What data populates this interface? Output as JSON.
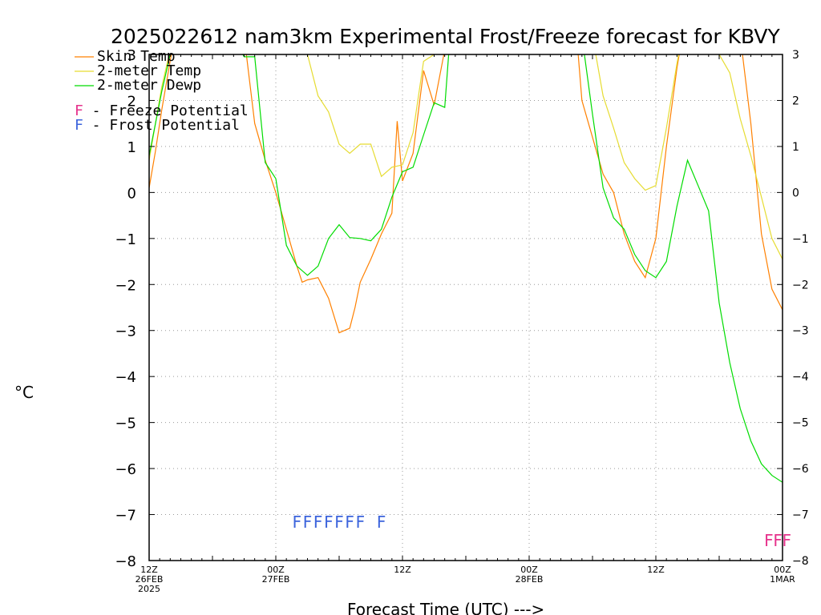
{
  "chart_data": {
    "type": "line",
    "title": "2025022612 nam3km Experimental Frost/Freeze forecast for KBVY",
    "xlabel": "Forecast Time (UTC) --->",
    "ylabel": "°C",
    "ylim": [
      -8,
      3
    ],
    "xlim": [
      0,
      60
    ],
    "yticks": [
      -8,
      -7,
      -6,
      -5,
      -4,
      -3,
      -2,
      -1,
      0,
      1,
      2,
      3
    ],
    "x_ticks": [
      {
        "x": 0,
        "l1": "12Z",
        "l2": "26FEB",
        "l3": "2025"
      },
      {
        "x": 12,
        "l1": "00Z",
        "l2": "27FEB",
        "l3": ""
      },
      {
        "x": 24,
        "l1": "12Z",
        "l2": "",
        "l3": ""
      },
      {
        "x": 36,
        "l1": "00Z",
        "l2": "28FEB",
        "l3": ""
      },
      {
        "x": 48,
        "l1": "12Z",
        "l2": "",
        "l3": ""
      },
      {
        "x": 60,
        "l1": "00Z",
        "l2": "1MAR",
        "l3": ""
      }
    ],
    "grid": true,
    "legend": [
      {
        "name": "Skin Temp",
        "color": "#ff8000"
      },
      {
        "name": "2-meter Temp",
        "color": "#e6dc32"
      },
      {
        "name": "2-meter Dewp",
        "color": "#00dc00"
      }
    ],
    "potential_legend": [
      {
        "letter": "F",
        "text": " - Freeze Potential",
        "color": "#e6328c"
      },
      {
        "letter": "F",
        "text": " - Frost Potential",
        "color": "#3c64dc"
      }
    ],
    "series": [
      {
        "name": "Skin Temp",
        "color": "#ff8000",
        "x": [
          0,
          0.6,
          1.2,
          1.8,
          2.4,
          9,
          10,
          11,
          12,
          13,
          14,
          14.5,
          15,
          16,
          17,
          18,
          18.5,
          19,
          19.5,
          20,
          21,
          22,
          23,
          23.5,
          24,
          25,
          26,
          27,
          28,
          29,
          29.5,
          40.5,
          41,
          42,
          43,
          44,
          45,
          46,
          47,
          48,
          49,
          50,
          50.5,
          56,
          57,
          58,
          59,
          60
        ],
        "y": [
          0.1,
          0.9,
          1.8,
          2.6,
          3.4,
          3.4,
          1.5,
          0.7,
          0.0,
          -0.8,
          -1.6,
          -1.95,
          -1.9,
          -1.85,
          -2.3,
          -3.05,
          -3.0,
          -2.95,
          -2.5,
          -1.95,
          -1.45,
          -0.9,
          -0.45,
          1.55,
          0.25,
          0.85,
          2.65,
          1.9,
          3.1,
          3.3,
          3.4,
          3.4,
          2.0,
          1.2,
          0.4,
          0.0,
          -0.9,
          -1.5,
          -1.85,
          -1.0,
          1.0,
          2.7,
          3.4,
          3.4,
          1.5,
          -0.9,
          -2.1,
          -2.55
        ]
      },
      {
        "name": "2-meter Temp",
        "color": "#e6dc32",
        "x": [
          0,
          0.6,
          1.2,
          1.8,
          2.4,
          14.5,
          15,
          16,
          17,
          18,
          18.5,
          19,
          20,
          21,
          22,
          23,
          24,
          25,
          26,
          27,
          28,
          28.5,
          42,
          43,
          44,
          45,
          46,
          47,
          48,
          49,
          50,
          50.5,
          53.5,
          54,
          55,
          56,
          57,
          58,
          59,
          60
        ],
        "y": [
          0.7,
          1.5,
          2.3,
          2.9,
          3.4,
          3.4,
          3.0,
          2.1,
          1.75,
          1.05,
          0.95,
          0.85,
          1.05,
          1.05,
          0.35,
          0.55,
          0.6,
          1.3,
          2.85,
          3.0,
          3.2,
          3.4,
          3.4,
          2.1,
          1.4,
          0.65,
          0.3,
          0.05,
          0.15,
          1.4,
          2.8,
          3.4,
          3.4,
          3.0,
          2.6,
          1.6,
          0.8,
          -0.1,
          -1.0,
          -1.45
        ]
      },
      {
        "name": "2-meter Dewp",
        "color": "#00dc00",
        "x": [
          0,
          0.6,
          1.2,
          1.8,
          2.4,
          8,
          9,
          10,
          11,
          12,
          13,
          14,
          15,
          16,
          17,
          18,
          19,
          20,
          21,
          22,
          23,
          24,
          25,
          26,
          27,
          28,
          28.5,
          41,
          42,
          43,
          44,
          45,
          46,
          47,
          48,
          49,
          50,
          51,
          52,
          53,
          54,
          55,
          56,
          57,
          58,
          59,
          60
        ],
        "y": [
          0.8,
          1.5,
          2.2,
          2.8,
          3.4,
          3.4,
          2.95,
          2.95,
          0.65,
          0.3,
          -1.15,
          -1.6,
          -1.8,
          -1.6,
          -1.0,
          -0.7,
          -0.98,
          -1.0,
          -1.05,
          -0.8,
          -0.1,
          0.45,
          0.55,
          1.25,
          1.95,
          1.85,
          3.4,
          3.4,
          1.7,
          0.1,
          -0.55,
          -0.8,
          -1.35,
          -1.7,
          -1.85,
          -1.5,
          -0.3,
          0.7,
          0.15,
          -0.4,
          -2.4,
          -3.7,
          -4.7,
          -5.4,
          -5.9,
          -6.15,
          -6.3
        ]
      }
    ],
    "frost_marks": {
      "color": "#3c64dc",
      "x": [
        14,
        15,
        16,
        17,
        18,
        19,
        20,
        22
      ],
      "y": -7.15
    },
    "freeze_marks": {
      "color": "#e6328c",
      "x": [
        58.7,
        59.55,
        60.4
      ],
      "y": -7.55
    }
  }
}
